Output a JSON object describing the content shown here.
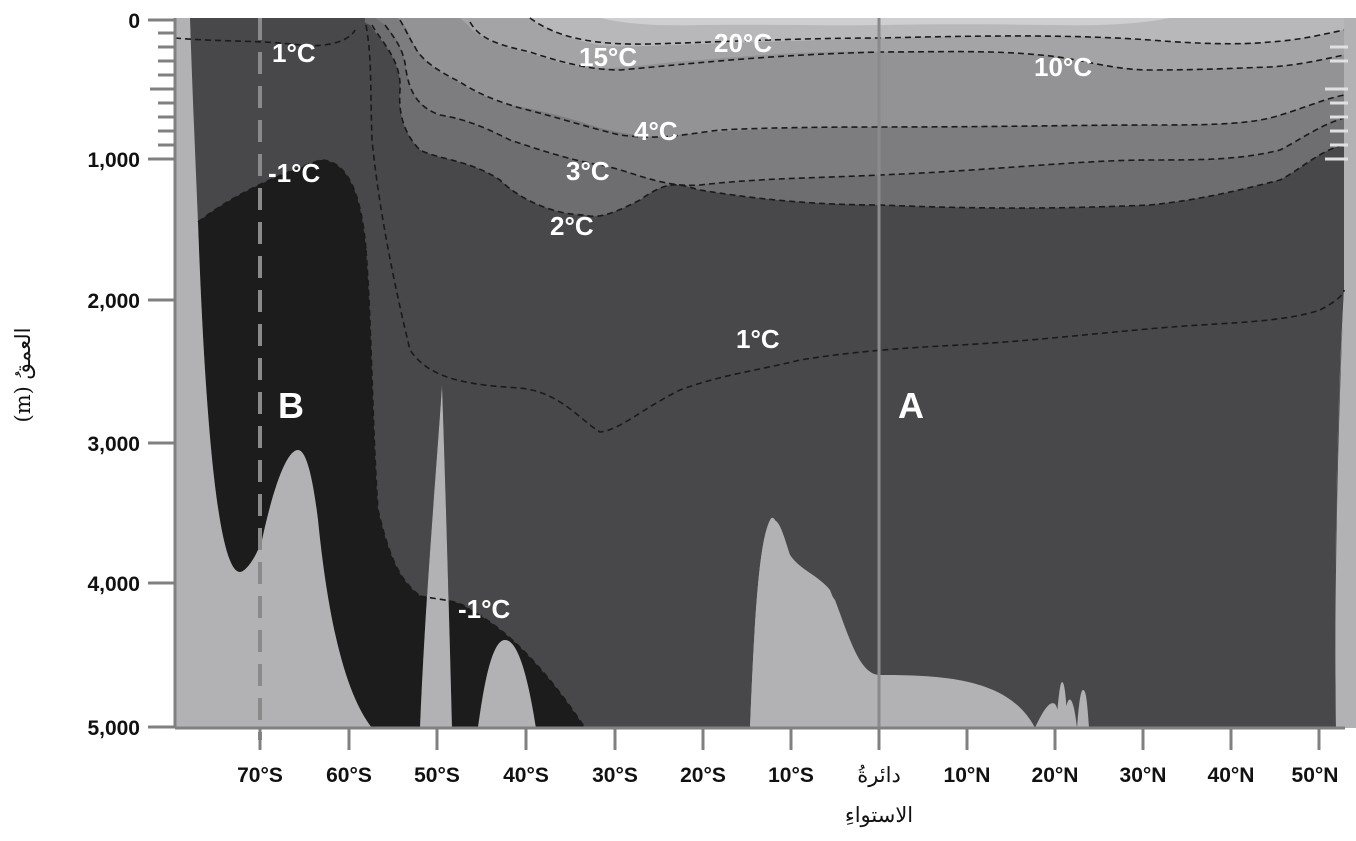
{
  "figure": {
    "y_axis": {
      "title": "العمقُ (m)",
      "ticks": [
        "0",
        "1,000",
        "2,000",
        "3,000",
        "4,000",
        "5,000"
      ]
    },
    "x_axis": {
      "ticks": [
        "70°S",
        "60°S",
        "50°S",
        "40°S",
        "30°S",
        "20°S",
        "10°S",
        "10°N",
        "20°N",
        "30°N",
        "40°N",
        "50°N"
      ],
      "equator_label_line1": "دائرةُ",
      "equator_label_line2": "الاستواءِ"
    },
    "isotherms": {
      "t1_top": "1°C",
      "tm1_upper": "-1°C",
      "t20": "20°C",
      "t15": "15°C",
      "t10": "10°C",
      "t4": "4°C",
      "t3": "3°C",
      "t2": "2°C",
      "t1_deep": "1°C",
      "tm1_lower": "-1°C"
    },
    "markers": {
      "a": "A",
      "b": "B"
    },
    "colors": {
      "seafloor": "#b2b2b4",
      "deep_water": "#48484a",
      "cold_bottom_water": "#1c1c1c",
      "water_2_to_3": "#6e6e70",
      "water_3_to_4": "#7d7d7f",
      "water_4_to_10": "#939395",
      "water_10_to_15": "#a4a4a6",
      "water_15_to_20": "#b8b8ba",
      "water_warm": "#cfcfd1"
    }
  }
}
